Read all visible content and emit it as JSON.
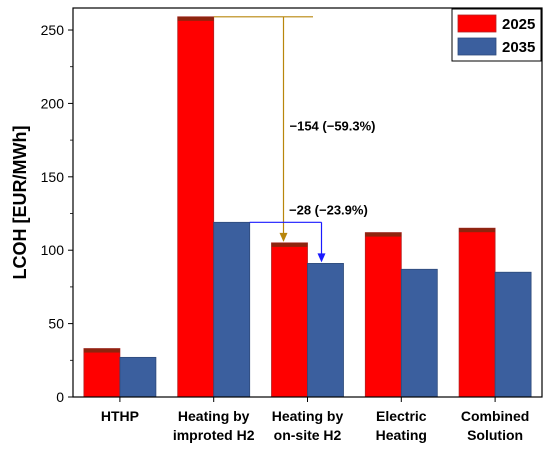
{
  "chart_data": {
    "type": "bar",
    "title": "",
    "xlabel": "",
    "ylabel": "LCOH [EUR/MWh]",
    "ylim": [
      0,
      265
    ],
    "yticks": [
      0,
      50,
      100,
      150,
      200,
      250
    ],
    "categories": [
      [
        "HTHP"
      ],
      [
        "Heating by",
        "improted H2"
      ],
      [
        "Heating by",
        "on-site H2"
      ],
      [
        "Electric",
        "Heating"
      ],
      [
        "Combined",
        "Solution"
      ]
    ],
    "series": [
      {
        "name": "2025",
        "color": "#ff0000",
        "values": [
          33,
          259,
          105,
          112,
          115
        ]
      },
      {
        "name": "2035",
        "color": "#3b5f9e",
        "values": [
          27,
          119,
          91,
          87,
          85
        ]
      }
    ],
    "legend_position": "top-right",
    "annotations": [
      {
        "text": "−154 (−59.3%)",
        "from_value": 259,
        "to_value": 105,
        "color": "#b8860b"
      },
      {
        "text": "−28 (−23.9%)",
        "from_value": 119,
        "to_value": 91,
        "color": "#1a1aff"
      }
    ]
  }
}
